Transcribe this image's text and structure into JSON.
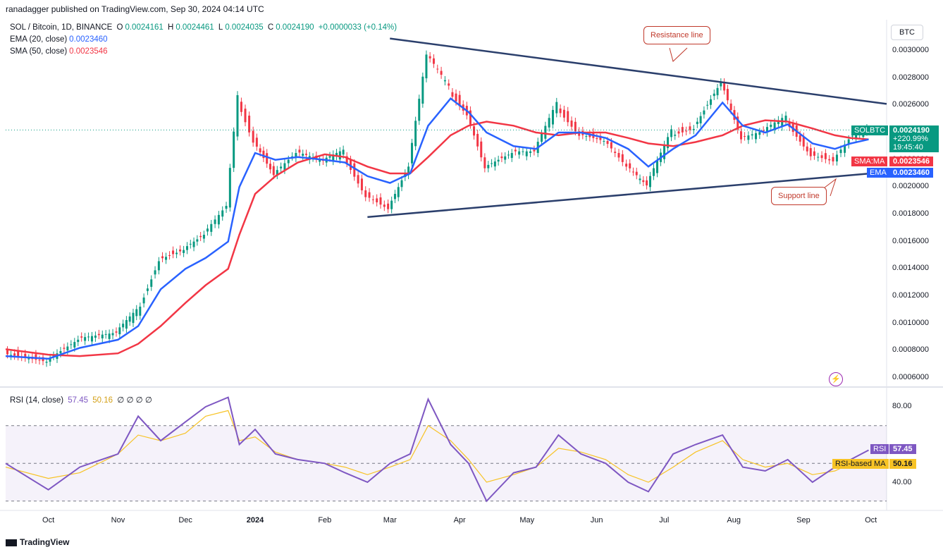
{
  "header": {
    "published": "ranadagger published on TradingView.com, Sep 30, 2024 04:14 UTC"
  },
  "legend": {
    "symbol": "SOL / Bitcoin, 1D, BINANCE",
    "o_label": "O",
    "o": "0.0024161",
    "h_label": "H",
    "h": "0.0024461",
    "l_label": "L",
    "l": "0.0024035",
    "c_label": "C",
    "c": "0.0024190",
    "change": "+0.0000033 (+0.14%)",
    "ema_label": "EMA (20, close)",
    "ema": "0.0023460",
    "sma_label": "SMA (50, close)",
    "sma": "0.0023546"
  },
  "currency": "BTC",
  "price_axis": [
    "0.0030000",
    "0.0028000",
    "0.0026000",
    "0.0022000",
    "0.0020000",
    "0.0018000",
    "0.0016000",
    "0.0014000",
    "0.0012000",
    "0.0010000",
    "0.0008000",
    "0.0006000"
  ],
  "tags": {
    "symbol": "SOLBTC",
    "symbol_price": "0.0024190",
    "symbol_change": "+220.99%",
    "symbol_time": "19:45:40",
    "sma": "SMA:MA",
    "sma_val": "0.0023546",
    "ema": "EMA",
    "ema_val": "0.0023460"
  },
  "rsi_legend": {
    "label": "RSI (14, close)",
    "rsi": "57.45",
    "ma": "50.16",
    "extra": "∅ ∅ ∅ ∅"
  },
  "rsi_axis": [
    "80.00",
    "40.00"
  ],
  "rsi_tags": {
    "rsi": "RSI",
    "rsi_val": "57.45",
    "ma": "RSI-based MA",
    "ma_val": "50.16"
  },
  "x_axis": [
    "Oct",
    "Nov",
    "Dec",
    "2024",
    "Feb",
    "Mar",
    "Apr",
    "May",
    "Jun",
    "Jul",
    "Aug",
    "Sep",
    "Oct"
  ],
  "annotations": {
    "resistance": "Resistance line",
    "support": "Support line"
  },
  "footer": "TradingView",
  "colors": {
    "ema": "#2962ff",
    "sma": "#f23645",
    "up": "#089981",
    "down": "#f23645",
    "trend": "#2b3f6c",
    "rsi": "#7e57c2",
    "rsi_ma": "#f7c325",
    "annotation": "#c0392b"
  },
  "chart_data": {
    "type": "line",
    "title": "SOL / Bitcoin, 1D, BINANCE",
    "ylabel": "BTC",
    "ylim": [
      0.0006,
      0.0031
    ],
    "x": [
      "2023-09-12",
      "2023-10-01",
      "2023-10-15",
      "2023-11-01",
      "2023-11-10",
      "2023-11-20",
      "2023-12-01",
      "2023-12-10",
      "2023-12-20",
      "2023-12-25",
      "2024-01-01",
      "2024-01-10",
      "2024-01-20",
      "2024-02-01",
      "2024-02-10",
      "2024-02-20",
      "2024-03-01",
      "2024-03-10",
      "2024-03-18",
      "2024-03-28",
      "2024-04-05",
      "2024-04-13",
      "2024-04-25",
      "2024-05-05",
      "2024-05-15",
      "2024-05-25",
      "2024-06-05",
      "2024-06-15",
      "2024-06-24",
      "2024-07-05",
      "2024-07-15",
      "2024-07-27",
      "2024-08-05",
      "2024-08-15",
      "2024-08-25",
      "2024-09-05",
      "2024-09-15",
      "2024-09-22",
      "2024-09-30"
    ],
    "series": [
      {
        "name": "SOLBTC",
        "values": [
          0.00079,
          0.00073,
          0.00088,
          0.00092,
          0.00108,
          0.00148,
          0.00155,
          0.00165,
          0.00185,
          0.00265,
          0.00235,
          0.0021,
          0.00225,
          0.00218,
          0.00225,
          0.00195,
          0.00185,
          0.00215,
          0.00296,
          0.00272,
          0.00255,
          0.00215,
          0.00225,
          0.00225,
          0.0026,
          0.0024,
          0.00235,
          0.00215,
          0.002,
          0.0024,
          0.00245,
          0.00278,
          0.00235,
          0.0024,
          0.0025,
          0.00225,
          0.0022,
          0.00235,
          0.00242
        ]
      },
      {
        "name": "EMA (20, close)",
        "values": [
          0.00076,
          0.00074,
          0.00082,
          0.00088,
          0.00098,
          0.00125,
          0.0014,
          0.00148,
          0.0016,
          0.002,
          0.00225,
          0.0022,
          0.00222,
          0.0022,
          0.00218,
          0.00208,
          0.00203,
          0.0021,
          0.00245,
          0.00265,
          0.00255,
          0.0024,
          0.0023,
          0.00228,
          0.0024,
          0.0024,
          0.00236,
          0.00228,
          0.00215,
          0.00228,
          0.00238,
          0.00262,
          0.00245,
          0.0024,
          0.00246,
          0.00232,
          0.00228,
          0.00232,
          0.00235
        ]
      },
      {
        "name": "SMA (50, close)",
        "values": [
          0.00081,
          0.00077,
          0.00076,
          0.00078,
          0.00085,
          0.00098,
          0.00115,
          0.00128,
          0.0014,
          0.00165,
          0.00195,
          0.00208,
          0.00218,
          0.00224,
          0.00222,
          0.00215,
          0.0021,
          0.0021,
          0.00222,
          0.00238,
          0.00245,
          0.00248,
          0.00245,
          0.0024,
          0.00238,
          0.0024,
          0.0024,
          0.00236,
          0.00232,
          0.0023,
          0.00233,
          0.00238,
          0.00245,
          0.00249,
          0.00248,
          0.00243,
          0.00238,
          0.00236,
          0.00235
        ]
      }
    ],
    "rsi": {
      "ylim": [
        20,
        90
      ],
      "bands": [
        70,
        30,
        50
      ],
      "values": [
        50,
        36,
        48,
        55,
        75,
        62,
        72,
        80,
        85,
        60,
        68,
        55,
        52,
        50,
        45,
        40,
        50,
        55,
        84,
        60,
        50,
        30,
        45,
        48,
        65,
        55,
        50,
        40,
        35,
        55,
        60,
        65,
        48,
        46,
        52,
        40,
        48,
        52,
        57
      ],
      "ma": [
        48,
        42,
        45,
        55,
        65,
        62,
        66,
        75,
        78,
        62,
        64,
        56,
        52,
        50,
        48,
        44,
        48,
        52,
        70,
        62,
        52,
        40,
        44,
        48,
        58,
        56,
        52,
        44,
        40,
        48,
        56,
        62,
        52,
        48,
        50,
        44,
        46,
        50,
        50
      ]
    },
    "trendlines": [
      {
        "name": "Resistance line",
        "from": [
          "2024-03-01",
          0.00309
        ],
        "to": [
          "2024-10-08",
          0.00261
        ]
      },
      {
        "name": "Support line",
        "from": [
          "2024-02-20",
          0.00178
        ],
        "to": [
          "2024-10-01",
          0.0021
        ]
      }
    ]
  }
}
